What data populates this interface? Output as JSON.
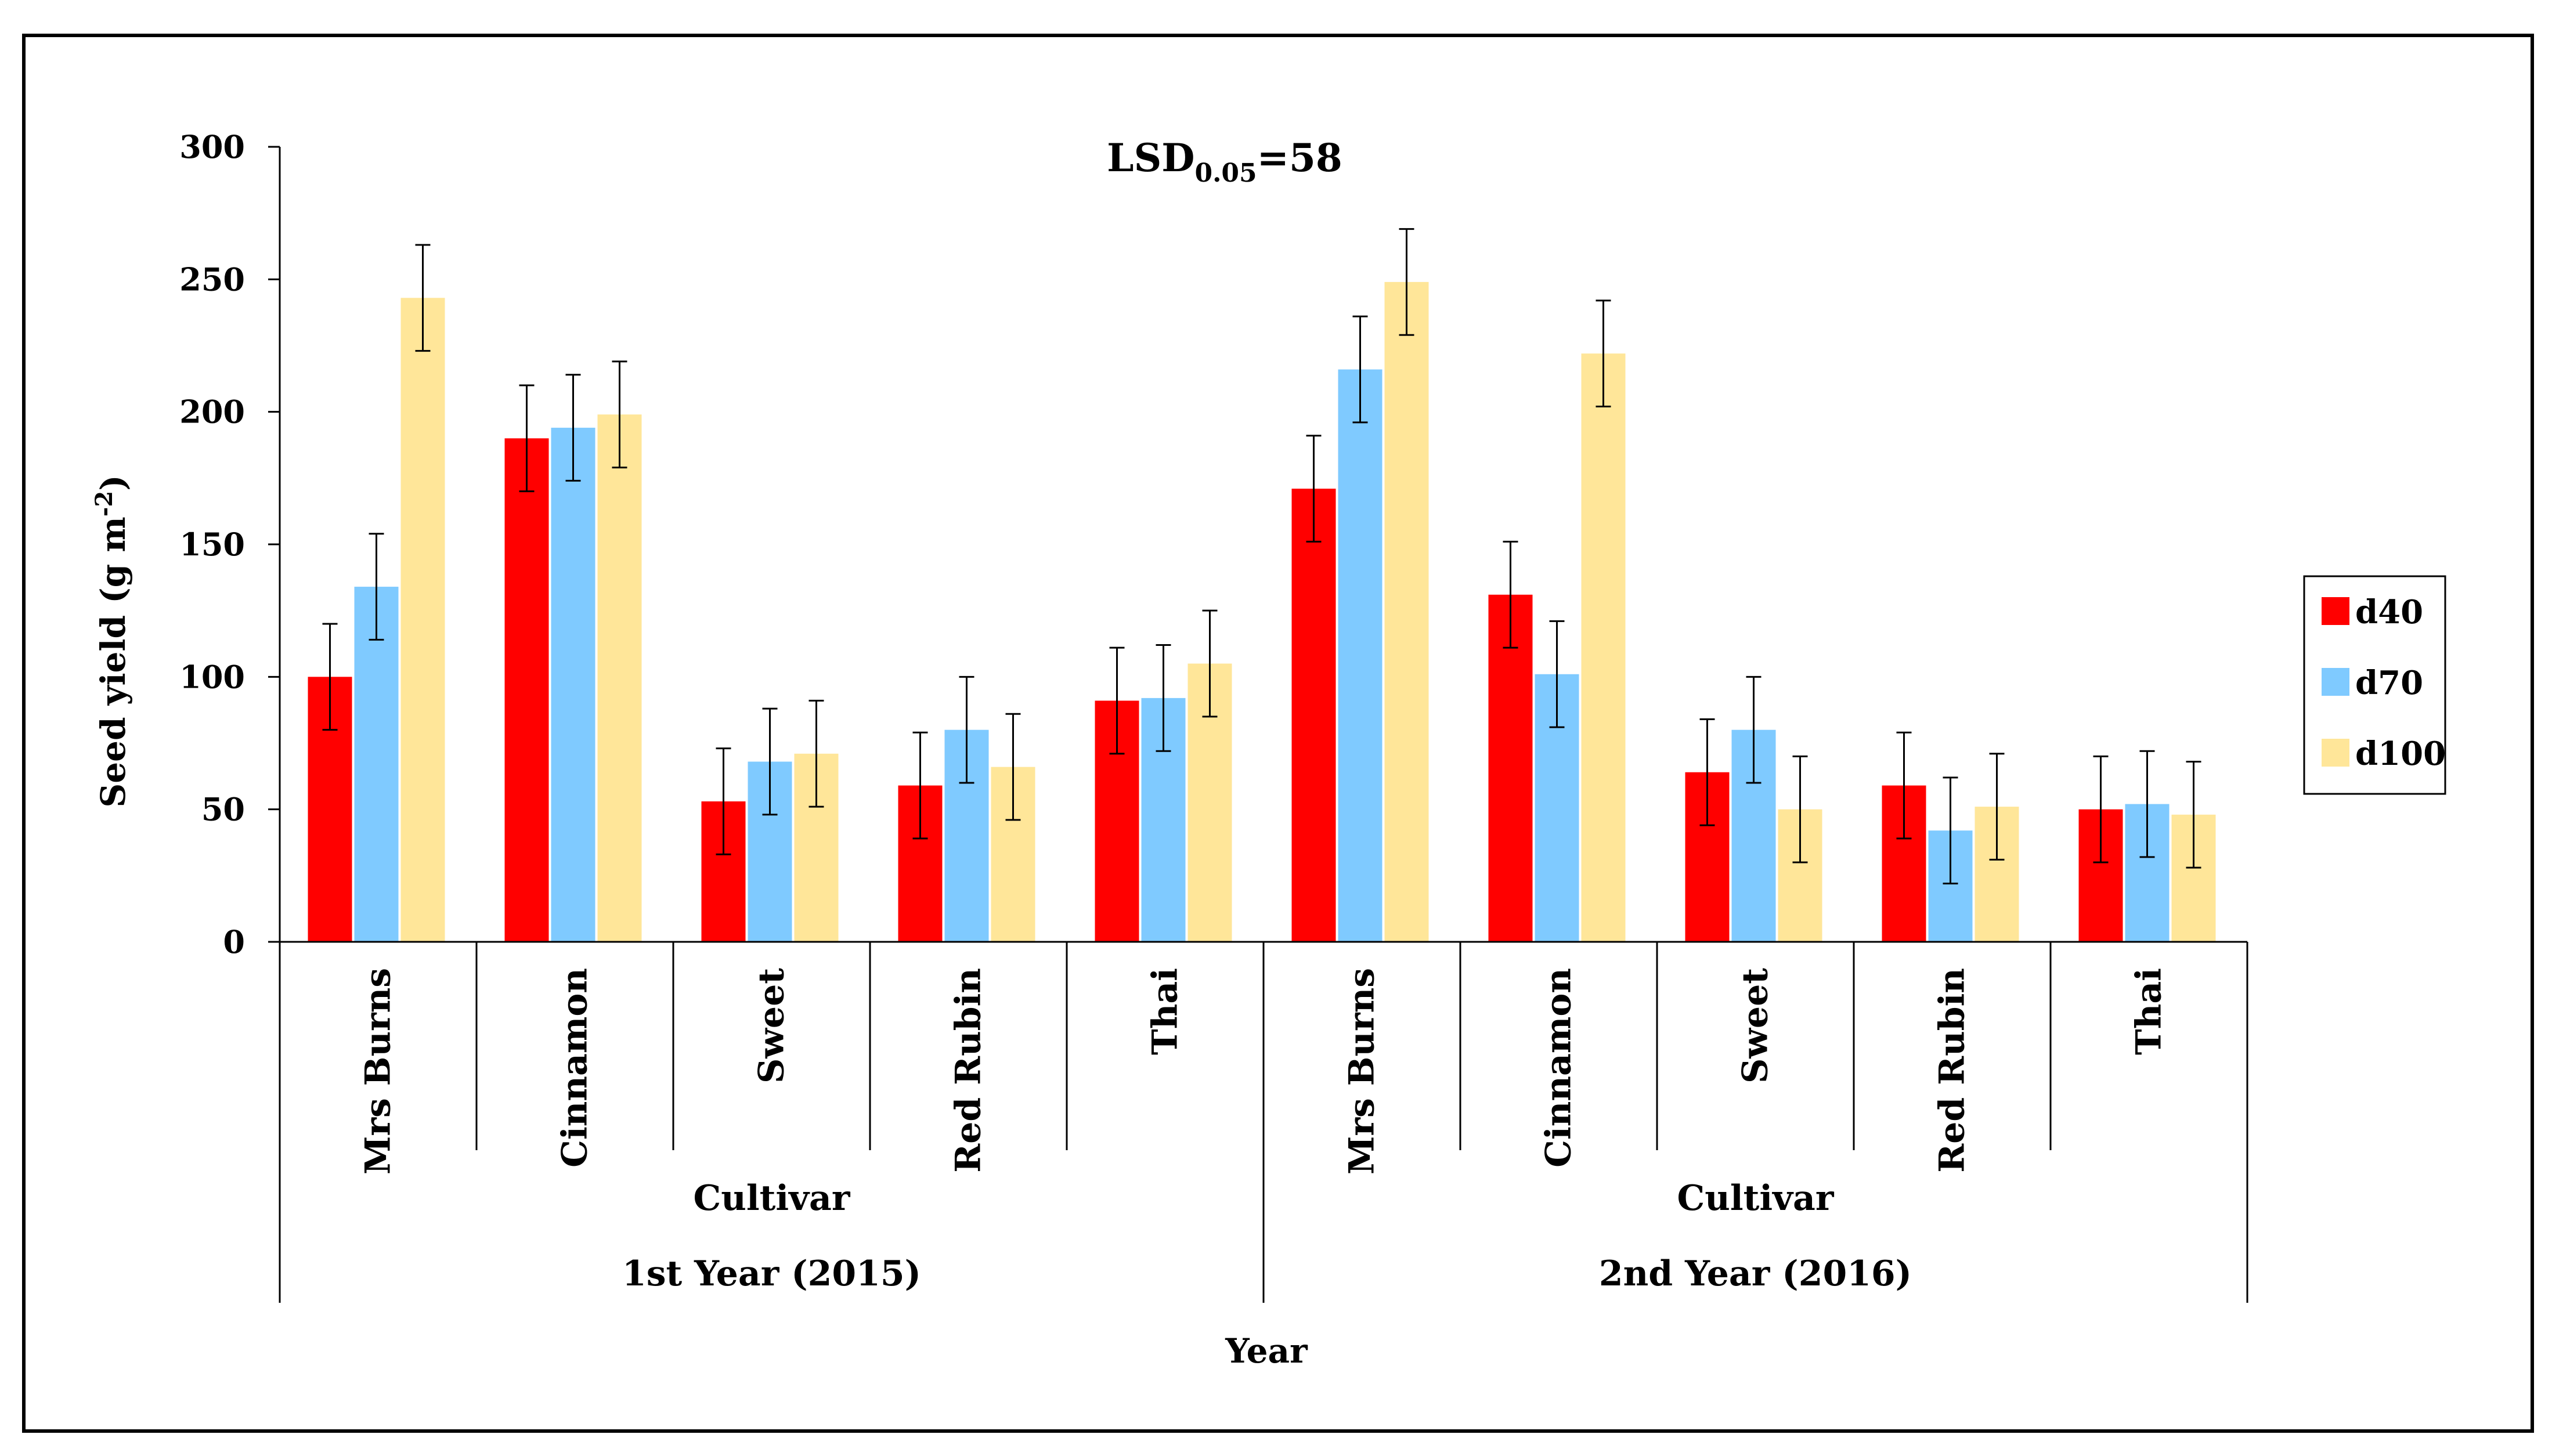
{
  "chart_data": {
    "type": "bar",
    "annotation": {
      "main": "LSD",
      "sub": "0.05",
      "tail": "=58"
    },
    "ylabel": {
      "main": "Seed yield (g m",
      "sup": "-2",
      "tail": ")"
    },
    "xlabel": "Year",
    "ylim": [
      0,
      300
    ],
    "yticks": [
      "0",
      "50",
      "100",
      "150",
      "200",
      "250",
      "300"
    ],
    "group_label": "Cultivar",
    "years": [
      "1st Year (2015)",
      "2nd Year (2016)"
    ],
    "categories": [
      "Mrs Burns",
      "Cinnamon",
      "Sweet",
      "Red Rubin",
      "Thai",
      "Mrs Burns",
      "Cinnamon",
      "Sweet",
      "Red Rubin",
      "Thai"
    ],
    "legend_position": "right",
    "series": [
      {
        "name": "d40",
        "color": "#ff0000",
        "values": [
          100,
          190,
          53,
          59,
          91,
          171,
          131,
          64,
          59,
          50
        ],
        "errors": [
          20,
          20,
          20,
          20,
          20,
          20,
          20,
          20,
          20,
          20
        ]
      },
      {
        "name": "d70",
        "color": "#7fcaff",
        "values": [
          134,
          194,
          68,
          80,
          92,
          216,
          101,
          80,
          42,
          52
        ],
        "errors": [
          20,
          20,
          20,
          20,
          20,
          20,
          20,
          20,
          20,
          20
        ]
      },
      {
        "name": "d100",
        "color": "#ffe699",
        "values": [
          243,
          199,
          71,
          66,
          105,
          249,
          222,
          50,
          51,
          48
        ],
        "errors": [
          20,
          20,
          20,
          20,
          20,
          20,
          20,
          20,
          20,
          20
        ]
      }
    ]
  }
}
